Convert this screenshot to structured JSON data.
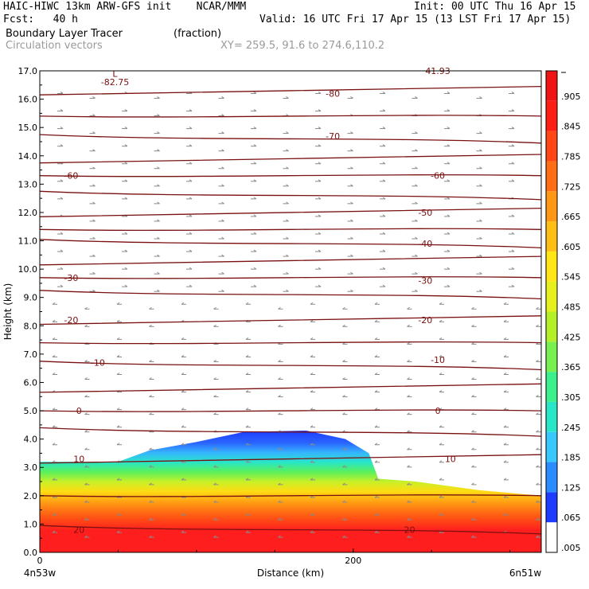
{
  "header": {
    "line1_left": "HAIC-HIWC 13km ARW-GFS init    NCAR/MMM",
    "line1_right": "Init: 00 UTC Thu 16 Apr 15",
    "line2_left": "Fcst:   40 h",
    "line2_right": "Valid: 16 UTC Fri 17 Apr 15 (13 LST Fri 17 Apr 15)",
    "field_name": "Boundary Layer Tracer",
    "field_units": "(fraction)",
    "vectors_label": "Circulation vectors",
    "xy_text": "XY= 259.5, 91.6 to 274.6,110.2"
  },
  "chart_data": {
    "type": "heatmap",
    "title": "Boundary Layer Tracer (fraction)",
    "xlabel": "Distance (km)",
    "ylabel": "Height (km)",
    "xlim": [
      0,
      320
    ],
    "ylim": [
      0,
      17
    ],
    "x_ticks": [
      {
        "value": 0,
        "label": "0"
      },
      {
        "value": 200,
        "label": "200"
      }
    ],
    "x_end_labels": {
      "left": "4n53w",
      "right": "6n51w"
    },
    "y_ticks": [
      "0.0",
      "1.0",
      "2.0",
      "3.0",
      "4.0",
      "5.0",
      "6.0",
      "7.0",
      "8.0",
      "9.0",
      "10.0",
      "11.0",
      "12.0",
      "13.0",
      "14.0",
      "15.0",
      "16.0",
      "17.0"
    ],
    "colorbar": {
      "labels": [
        ".005",
        ".065",
        ".125",
        ".185",
        ".245",
        ".305",
        ".365",
        ".425",
        ".485",
        ".545",
        ".605",
        ".665",
        ".725",
        ".785",
        ".845",
        ".905"
      ],
      "colors": [
        "#ffffff",
        "#1e3cff",
        "#2a8cff",
        "#36c8ff",
        "#28e6c8",
        "#3cf08c",
        "#78f050",
        "#b4f028",
        "#e6f01e",
        "#ffe614",
        "#ffbe14",
        "#ff9614",
        "#ff6e14",
        "#ff4614",
        "#ff1e14",
        "#f01414"
      ]
    },
    "shading_top_km": [
      {
        "x": 0,
        "h": 3.2
      },
      {
        "x": 50,
        "h": 3.2
      },
      {
        "x": 70,
        "h": 3.6
      },
      {
        "x": 100,
        "h": 3.9
      },
      {
        "x": 130,
        "h": 4.25
      },
      {
        "x": 170,
        "h": 4.3
      },
      {
        "x": 195,
        "h": 4.0
      },
      {
        "x": 210,
        "h": 3.5
      },
      {
        "x": 216,
        "h": 2.6
      },
      {
        "x": 240,
        "h": 2.5
      },
      {
        "x": 280,
        "h": 2.2
      },
      {
        "x": 320,
        "h": 2.0
      }
    ],
    "theta_contours": [
      {
        "label": "-82.75",
        "x": 48,
        "h": 16.6
      },
      {
        "label": "-80",
        "x": 187,
        "h": 16.2
      },
      {
        "label": "-70",
        "x": 187,
        "h": 14.7
      },
      {
        "label": "-60",
        "x": 20,
        "h": 13.3
      },
      {
        "label": "-60",
        "x": 254,
        "h": 13.3
      },
      {
        "label": "-50",
        "x": 246,
        "h": 12.0
      },
      {
        "label": "-40",
        "x": 246,
        "h": 10.9
      },
      {
        "label": "-30",
        "x": 20,
        "h": 9.7
      },
      {
        "label": "-30",
        "x": 246,
        "h": 9.6
      },
      {
        "label": "-20",
        "x": 20,
        "h": 8.2
      },
      {
        "label": "-20",
        "x": 246,
        "h": 8.2
      },
      {
        "label": "-10",
        "x": 37,
        "h": 6.7
      },
      {
        "label": "-10",
        "x": 254,
        "h": 6.8
      },
      {
        "label": "0",
        "x": 25,
        "h": 5.0
      },
      {
        "label": "0",
        "x": 254,
        "h": 5.0
      },
      {
        "label": "10",
        "x": 25,
        "h": 3.3
      },
      {
        "label": "10",
        "x": 262,
        "h": 3.3
      },
      {
        "label": "20",
        "x": 25,
        "h": 0.8
      },
      {
        "label": "20",
        "x": 236,
        "h": 0.8
      }
    ],
    "contour_levels_km": [
      16.3,
      15.4,
      14.6,
      13.9,
      13.3,
      12.6,
      12.0,
      11.4,
      10.9,
      10.3,
      9.7,
      9.1,
      8.2,
      7.4,
      6.6,
      5.8,
      5.0,
      4.25,
      3.3,
      2.0,
      0.8
    ],
    "extra_labels": [
      {
        "label": "L",
        "x": 48,
        "h": 16.9
      },
      {
        "label": "41.93",
        "x": 254,
        "h": 17.0
      }
    ]
  }
}
